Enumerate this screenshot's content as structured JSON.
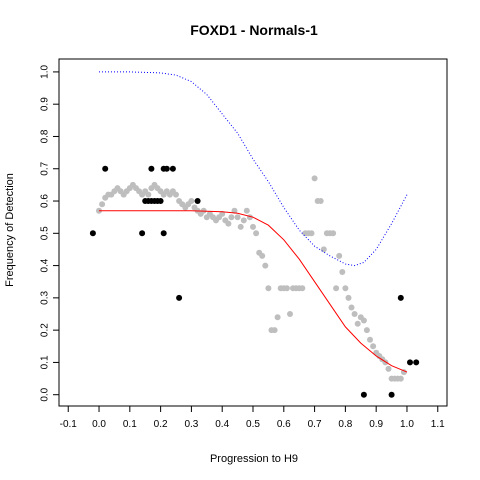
{
  "chart_data": {
    "type": "scatter",
    "title": "FOXD1 - Normals-1",
    "xlabel": "Progression to H9",
    "ylabel": "Frequency of Detection",
    "xlim": [
      -0.13,
      1.13
    ],
    "ylim": [
      -0.035,
      1.04
    ],
    "x_ticks": [
      "-0.1",
      "0.0",
      "0.1",
      "0.2",
      "0.3",
      "0.4",
      "0.5",
      "0.6",
      "0.7",
      "0.8",
      "0.9",
      "1.0",
      "1.1"
    ],
    "y_ticks": [
      "0.0",
      "0.1",
      "0.2",
      "0.3",
      "0.4",
      "0.5",
      "0.6",
      "0.7",
      "0.8",
      "0.9",
      "1.0"
    ],
    "series": [
      {
        "kind": "points",
        "color": "#000000",
        "points": [
          [
            -0.02,
            0.5
          ],
          [
            0.02,
            0.7
          ],
          [
            0.14,
            0.5
          ],
          [
            0.15,
            0.6
          ],
          [
            0.16,
            0.6
          ],
          [
            0.17,
            0.7
          ],
          [
            0.17,
            0.6
          ],
          [
            0.18,
            0.6
          ],
          [
            0.19,
            0.6
          ],
          [
            0.2,
            0.6
          ],
          [
            0.21,
            0.7
          ],
          [
            0.21,
            0.5
          ],
          [
            0.22,
            0.7
          ],
          [
            0.24,
            0.7
          ],
          [
            0.26,
            0.3
          ],
          [
            0.32,
            0.6
          ],
          [
            0.86,
            0.0
          ],
          [
            0.95,
            0.0
          ],
          [
            0.98,
            0.3
          ],
          [
            1.01,
            0.1
          ],
          [
            1.03,
            0.1
          ]
        ]
      },
      {
        "kind": "points",
        "color": "#bebebe",
        "points": [
          [
            0.0,
            0.57
          ],
          [
            0.01,
            0.59
          ],
          [
            0.02,
            0.61
          ],
          [
            0.03,
            0.62
          ],
          [
            0.04,
            0.62
          ],
          [
            0.05,
            0.63
          ],
          [
            0.06,
            0.64
          ],
          [
            0.07,
            0.63
          ],
          [
            0.08,
            0.62
          ],
          [
            0.09,
            0.63
          ],
          [
            0.1,
            0.64
          ],
          [
            0.11,
            0.65
          ],
          [
            0.12,
            0.64
          ],
          [
            0.13,
            0.63
          ],
          [
            0.14,
            0.62
          ],
          [
            0.15,
            0.63
          ],
          [
            0.16,
            0.62
          ],
          [
            0.17,
            0.64
          ],
          [
            0.18,
            0.65
          ],
          [
            0.19,
            0.64
          ],
          [
            0.2,
            0.63
          ],
          [
            0.21,
            0.62
          ],
          [
            0.22,
            0.63
          ],
          [
            0.23,
            0.62
          ],
          [
            0.24,
            0.63
          ],
          [
            0.25,
            0.62
          ],
          [
            0.26,
            0.6
          ],
          [
            0.27,
            0.59
          ],
          [
            0.28,
            0.58
          ],
          [
            0.29,
            0.59
          ],
          [
            0.3,
            0.6
          ],
          [
            0.31,
            0.58
          ],
          [
            0.32,
            0.57
          ],
          [
            0.33,
            0.56
          ],
          [
            0.34,
            0.57
          ],
          [
            0.35,
            0.55
          ],
          [
            0.36,
            0.56
          ],
          [
            0.37,
            0.55
          ],
          [
            0.38,
            0.54
          ],
          [
            0.39,
            0.55
          ],
          [
            0.4,
            0.56
          ],
          [
            0.41,
            0.54
          ],
          [
            0.42,
            0.53
          ],
          [
            0.43,
            0.55
          ],
          [
            0.44,
            0.57
          ],
          [
            0.45,
            0.55
          ],
          [
            0.46,
            0.52
          ],
          [
            0.47,
            0.54
          ],
          [
            0.48,
            0.57
          ],
          [
            0.49,
            0.55
          ],
          [
            0.5,
            0.52
          ],
          [
            0.51,
            0.5
          ],
          [
            0.52,
            0.44
          ],
          [
            0.53,
            0.43
          ],
          [
            0.54,
            0.4
          ],
          [
            0.55,
            0.33
          ],
          [
            0.56,
            0.2
          ],
          [
            0.57,
            0.2
          ],
          [
            0.58,
            0.24
          ],
          [
            0.59,
            0.33
          ],
          [
            0.6,
            0.33
          ],
          [
            0.61,
            0.33
          ],
          [
            0.62,
            0.25
          ],
          [
            0.63,
            0.33
          ],
          [
            0.64,
            0.33
          ],
          [
            0.65,
            0.33
          ],
          [
            0.66,
            0.33
          ],
          [
            0.67,
            0.5
          ],
          [
            0.68,
            0.5
          ],
          [
            0.69,
            0.5
          ],
          [
            0.7,
            0.67
          ],
          [
            0.71,
            0.6
          ],
          [
            0.72,
            0.6
          ],
          [
            0.73,
            0.45
          ],
          [
            0.74,
            0.5
          ],
          [
            0.75,
            0.5
          ],
          [
            0.76,
            0.5
          ],
          [
            0.77,
            0.33
          ],
          [
            0.78,
            0.43
          ],
          [
            0.79,
            0.38
          ],
          [
            0.8,
            0.33
          ],
          [
            0.81,
            0.3
          ],
          [
            0.82,
            0.27
          ],
          [
            0.83,
            0.25
          ],
          [
            0.84,
            0.22
          ],
          [
            0.85,
            0.24
          ],
          [
            0.86,
            0.23
          ],
          [
            0.87,
            0.2
          ],
          [
            0.88,
            0.17
          ],
          [
            0.89,
            0.15
          ],
          [
            0.9,
            0.13
          ],
          [
            0.91,
            0.12
          ],
          [
            0.92,
            0.11
          ],
          [
            0.93,
            0.1
          ],
          [
            0.94,
            0.08
          ],
          [
            0.95,
            0.05
          ],
          [
            0.96,
            0.05
          ],
          [
            0.97,
            0.05
          ],
          [
            0.98,
            0.05
          ],
          [
            0.99,
            0.07
          ]
        ]
      },
      {
        "kind": "line",
        "color": "#ff0000",
        "points": [
          [
            0.0,
            0.57
          ],
          [
            0.1,
            0.57
          ],
          [
            0.2,
            0.57
          ],
          [
            0.3,
            0.57
          ],
          [
            0.4,
            0.567
          ],
          [
            0.45,
            0.562
          ],
          [
            0.5,
            0.55
          ],
          [
            0.55,
            0.525
          ],
          [
            0.6,
            0.48
          ],
          [
            0.65,
            0.42
          ],
          [
            0.7,
            0.35
          ],
          [
            0.75,
            0.28
          ],
          [
            0.8,
            0.21
          ],
          [
            0.85,
            0.16
          ],
          [
            0.9,
            0.12
          ],
          [
            0.95,
            0.09
          ],
          [
            1.0,
            0.07
          ]
        ]
      },
      {
        "kind": "line",
        "style": "dotted",
        "color": "#0000ff",
        "points": [
          [
            0.0,
            1.0
          ],
          [
            0.1,
            1.0
          ],
          [
            0.2,
            0.997
          ],
          [
            0.25,
            0.99
          ],
          [
            0.3,
            0.97
          ],
          [
            0.35,
            0.93
          ],
          [
            0.4,
            0.87
          ],
          [
            0.45,
            0.81
          ],
          [
            0.5,
            0.73
          ],
          [
            0.55,
            0.66
          ],
          [
            0.6,
            0.58
          ],
          [
            0.65,
            0.51
          ],
          [
            0.7,
            0.46
          ],
          [
            0.75,
            0.43
          ],
          [
            0.8,
            0.405
          ],
          [
            0.83,
            0.4
          ],
          [
            0.86,
            0.41
          ],
          [
            0.9,
            0.45
          ],
          [
            0.95,
            0.53
          ],
          [
            1.0,
            0.62
          ]
        ]
      }
    ]
  }
}
